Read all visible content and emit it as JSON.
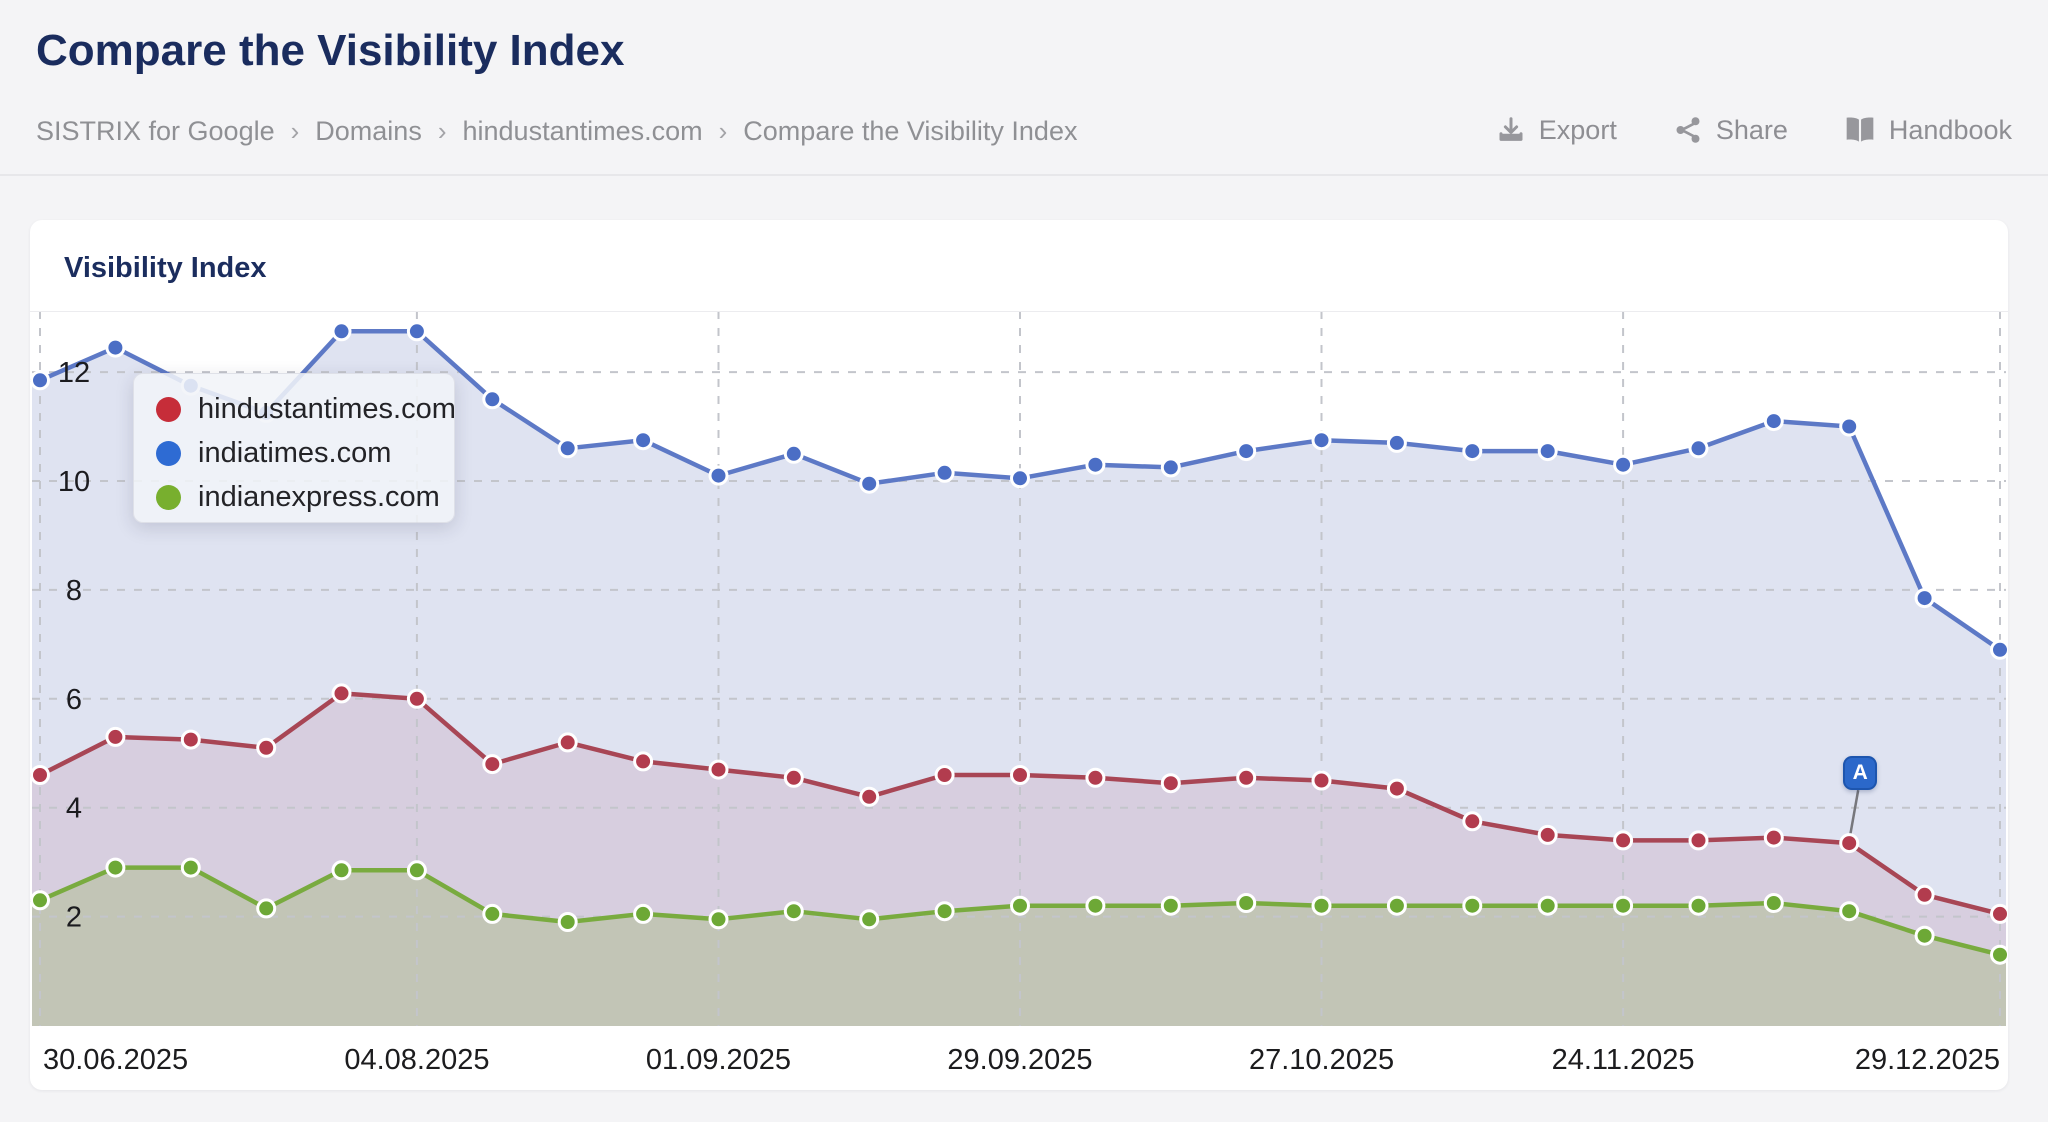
{
  "page": {
    "title": "Compare the Visibility Index"
  },
  "breadcrumb": {
    "separator": "›",
    "items": [
      {
        "label": "SISTRIX for Google"
      },
      {
        "label": "Domains"
      },
      {
        "label": "hindustantimes.com"
      },
      {
        "label": "Compare the Visibility Index"
      }
    ]
  },
  "toolbar": {
    "export_label": "Export",
    "share_label": "Share",
    "handbook_label": "Handbook"
  },
  "card": {
    "title": "Visibility Index"
  },
  "chart_data": {
    "type": "line",
    "title": "Visibility Index",
    "ylim": [
      0,
      13.1
    ],
    "yticks": [
      2,
      4,
      6,
      8,
      10,
      12
    ],
    "grid": true,
    "num_points": 27,
    "x_interval": "weekly",
    "xticks": [
      {
        "index": 0,
        "label": "30.06.2025",
        "align": "start"
      },
      {
        "index": 5,
        "label": "04.08.2025",
        "align": "center"
      },
      {
        "index": 9,
        "label": "01.09.2025",
        "align": "center"
      },
      {
        "index": 13,
        "label": "29.09.2025",
        "align": "center"
      },
      {
        "index": 17,
        "label": "27.10.2025",
        "align": "center"
      },
      {
        "index": 21,
        "label": "24.11.2025",
        "align": "center"
      },
      {
        "index": 26,
        "label": "29.12.2025",
        "align": "end"
      }
    ],
    "legend_position": "top-left",
    "series": [
      {
        "name": "hindustantimes.com",
        "legend_color": "#c62d39",
        "line_color": "#a84655",
        "dot_color": "#b23c4e",
        "fill_color": "#d7cedf",
        "draw_order": 1,
        "values": [
          4.6,
          5.3,
          5.25,
          5.1,
          6.1,
          6.0,
          4.8,
          5.2,
          4.85,
          4.7,
          4.55,
          4.2,
          4.6,
          4.6,
          4.55,
          4.45,
          4.55,
          4.5,
          4.35,
          3.75,
          3.5,
          3.4,
          3.4,
          3.45,
          3.35,
          2.4,
          2.05
        ]
      },
      {
        "name": "indiatimes.com",
        "legend_color": "#2e6bd3",
        "line_color": "#5d79c6",
        "dot_color": "#4b6ec5",
        "fill_color": "#dfe3f1",
        "draw_order": 0,
        "values": [
          11.85,
          12.45,
          11.75,
          11.25,
          12.75,
          12.75,
          11.5,
          10.6,
          10.75,
          10.1,
          10.5,
          9.95,
          10.15,
          10.05,
          10.3,
          10.25,
          10.55,
          10.75,
          10.7,
          10.55,
          10.55,
          10.3,
          10.6,
          11.1,
          11.0,
          7.85,
          6.9
        ]
      },
      {
        "name": "indianexpress.com",
        "legend_color": "#78af2e",
        "line_color": "#79ab3f",
        "dot_color": "#6da836",
        "fill_color": "#c2c5b6",
        "draw_order": 2,
        "values": [
          2.3,
          2.9,
          2.9,
          2.15,
          2.85,
          2.85,
          2.05,
          1.9,
          2.05,
          1.95,
          2.1,
          1.95,
          2.1,
          2.2,
          2.2,
          2.2,
          2.25,
          2.2,
          2.2,
          2.2,
          2.2,
          2.2,
          2.2,
          2.25,
          2.1,
          1.65,
          1.3
        ]
      }
    ],
    "annotation": {
      "label": "A",
      "series": "hindustantimes.com",
      "point_index": 24
    },
    "colors": {
      "gridline": "#c3c5cb",
      "axis_text": "#1b1b1f",
      "plot_background": "#ffffff"
    }
  }
}
